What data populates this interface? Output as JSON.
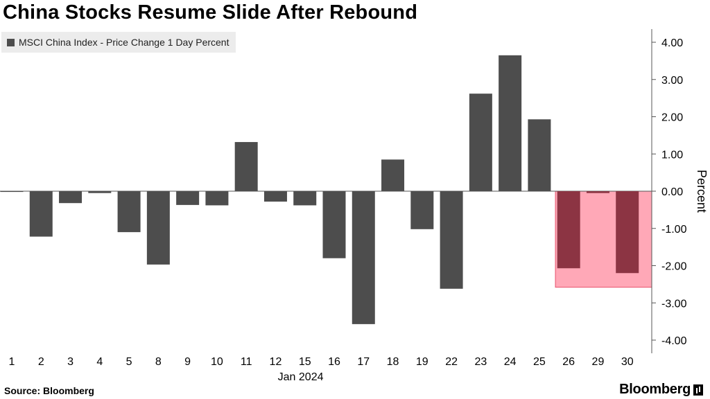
{
  "title": "China Stocks Resume Slide After Rebound",
  "source": "Source: Bloomberg",
  "logo": "Bloomberg",
  "colors": {
    "bar": "#4d4d4d",
    "highlight_fill": "#ffa8b7",
    "highlight_stroke": "#e8506b",
    "highlight_bar": "#8c3443"
  },
  "chart_data": {
    "type": "bar",
    "title": "China Stocks Resume Slide After Rebound",
    "xlabel": "Jan 2024",
    "ylabel": "Percent",
    "ylim": [
      -4.3,
      4.3
    ],
    "yticks": [
      4,
      3,
      2,
      1,
      0,
      -1,
      -2,
      -3,
      -4
    ],
    "ytick_labels": [
      "4.00",
      "3.00",
      "2.00",
      "1.00",
      "0.00",
      "-1.00",
      "-2.00",
      "-3.00",
      "-4.00"
    ],
    "y_axis_position": "right",
    "grid": false,
    "legend": "top-left",
    "categories": [
      "1",
      "2",
      "3",
      "4",
      "5",
      "8",
      "9",
      "10",
      "11",
      "12",
      "15",
      "16",
      "17",
      "18",
      "19",
      "22",
      "23",
      "24",
      "25",
      "26",
      "29",
      "30"
    ],
    "series": [
      {
        "name": "MSCI China Index - Price Change 1 Day Percent",
        "values": [
          -0.02,
          -1.22,
          -0.32,
          -0.05,
          -1.1,
          -1.97,
          -0.37,
          -0.38,
          1.32,
          -0.28,
          -0.38,
          -1.8,
          -3.57,
          0.85,
          -1.02,
          -2.62,
          2.62,
          3.65,
          1.93,
          -2.07,
          -0.05,
          -2.2
        ]
      }
    ],
    "highlight": {
      "from_category": "26",
      "to_category": "30",
      "y_range": [
        -2.58,
        0
      ]
    }
  }
}
